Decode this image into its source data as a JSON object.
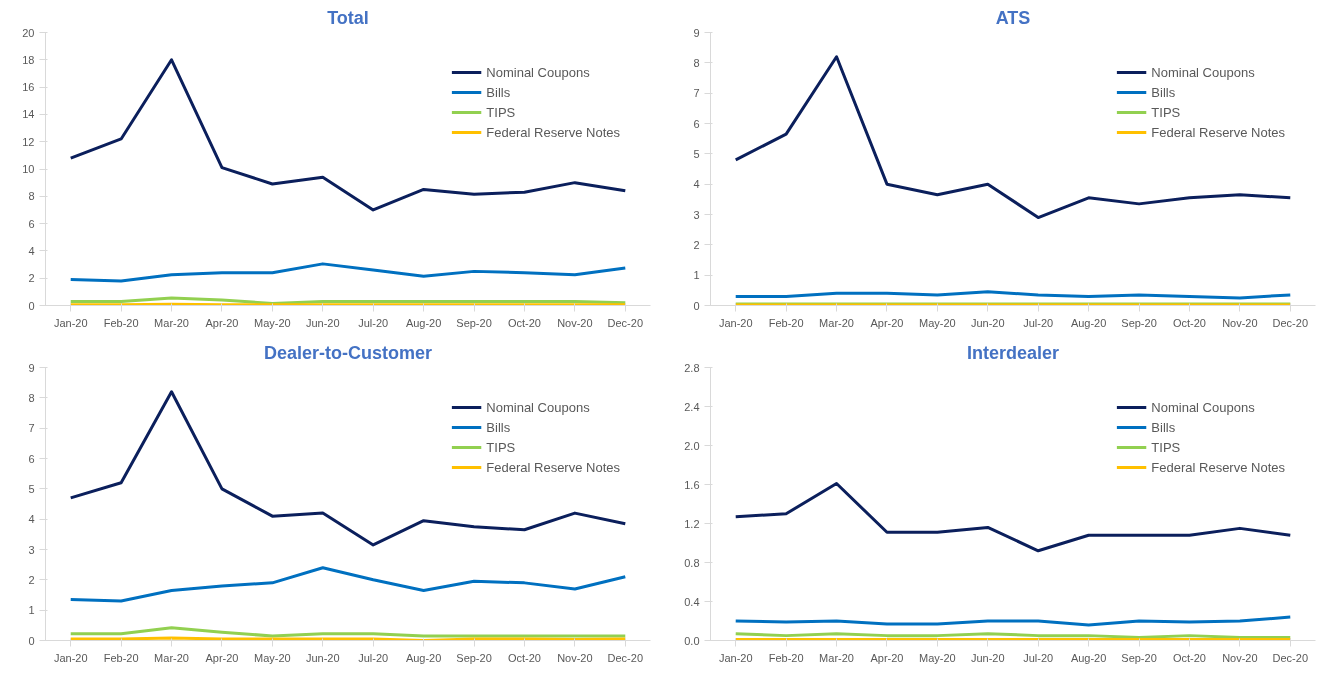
{
  "chart_data": [
    {
      "type": "line",
      "title": "Total",
      "categories": [
        "Jan-20",
        "Feb-20",
        "Mar-20",
        "Apr-20",
        "May-20",
        "Jun-20",
        "Jul-20",
        "Aug-20",
        "Sep-20",
        "Oct-20",
        "Nov-20",
        "Dec-20"
      ],
      "ylim": [
        0,
        20
      ],
      "yticks": [
        0,
        2,
        4,
        6,
        8,
        10,
        12,
        14,
        16,
        18,
        20
      ],
      "grid": false,
      "legend": "top right",
      "series": [
        {
          "name": "Nominal Coupons",
          "color": "#0b1f5c",
          "values": [
            10.8,
            12.2,
            18,
            10.1,
            8.9,
            9.4,
            7,
            8.5,
            8.15,
            8.3,
            9,
            8.4
          ]
        },
        {
          "name": "Bills",
          "color": "#0070c0",
          "values": [
            1.9,
            1.8,
            2.25,
            2.4,
            2.4,
            3.05,
            2.6,
            2.15,
            2.5,
            2.4,
            2.25,
            2.75
          ]
        },
        {
          "name": "TIPS",
          "color": "#92d050",
          "values": [
            0.3,
            0.3,
            0.55,
            0.4,
            0.15,
            0.3,
            0.3,
            0.3,
            0.3,
            0.3,
            0.3,
            0.2
          ]
        },
        {
          "name": "Federal Reserve Notes",
          "color": "#ffc000",
          "values": [
            0.05,
            0.05,
            0.1,
            0.05,
            0.05,
            0.05,
            0.05,
            0.05,
            0.05,
            0.05,
            0.05,
            0.05
          ]
        }
      ]
    },
    {
      "type": "line",
      "title": "ATS",
      "categories": [
        "Jan-20",
        "Feb-20",
        "Mar-20",
        "Apr-20",
        "May-20",
        "Jun-20",
        "Jul-20",
        "Aug-20",
        "Sep-20",
        "Oct-20",
        "Nov-20",
        "Dec-20"
      ],
      "ylim": [
        0,
        9
      ],
      "yticks": [
        0,
        1,
        2,
        3,
        4,
        5,
        6,
        7,
        8,
        9
      ],
      "grid": false,
      "legend": "top right",
      "series": [
        {
          "name": "Nominal Coupons",
          "color": "#0b1f5c",
          "values": [
            4.8,
            5.65,
            8.2,
            4.0,
            3.65,
            4.0,
            2.9,
            3.55,
            3.35,
            3.55,
            3.65,
            3.55
          ]
        },
        {
          "name": "Bills",
          "color": "#0070c0",
          "values": [
            0.3,
            0.3,
            0.4,
            0.4,
            0.35,
            0.45,
            0.35,
            0.3,
            0.35,
            0.3,
            0.25,
            0.35
          ]
        },
        {
          "name": "TIPS",
          "color": "#92d050",
          "values": [
            0.05,
            0.05,
            0.05,
            0.05,
            0.05,
            0.05,
            0.05,
            0.05,
            0.05,
            0.05,
            0.05,
            0.05
          ]
        },
        {
          "name": "Federal Reserve Notes",
          "color": "#ffc000",
          "values": [
            0.02,
            0.02,
            0.02,
            0.02,
            0.02,
            0.02,
            0.02,
            0.02,
            0.02,
            0.02,
            0.02,
            0.02
          ]
        }
      ]
    },
    {
      "type": "line",
      "title": "Dealer-to-Customer",
      "categories": [
        "Jan-20",
        "Feb-20",
        "Mar-20",
        "Apr-20",
        "May-20",
        "Jun-20",
        "Jul-20",
        "Aug-20",
        "Sep-20",
        "Oct-20",
        "Nov-20",
        "Dec-20"
      ],
      "ylim": [
        0,
        9
      ],
      "yticks": [
        0,
        1,
        2,
        3,
        4,
        5,
        6,
        7,
        8,
        9
      ],
      "grid": false,
      "legend": "top right",
      "series": [
        {
          "name": "Nominal Coupons",
          "color": "#0b1f5c",
          "values": [
            4.7,
            5.2,
            8.2,
            5.0,
            4.1,
            4.2,
            3.15,
            3.95,
            3.75,
            3.65,
            4.2,
            3.85
          ]
        },
        {
          "name": "Bills",
          "color": "#0070c0",
          "values": [
            1.35,
            1.3,
            1.65,
            1.8,
            1.9,
            2.4,
            2.0,
            1.65,
            1.95,
            1.9,
            1.7,
            2.1
          ]
        },
        {
          "name": "TIPS",
          "color": "#92d050",
          "values": [
            0.22,
            0.22,
            0.42,
            0.27,
            0.15,
            0.22,
            0.22,
            0.15,
            0.15,
            0.15,
            0.15,
            0.15
          ]
        },
        {
          "name": "Federal Reserve Notes",
          "color": "#ffc000",
          "values": [
            0.05,
            0.05,
            0.08,
            0.05,
            0.05,
            0.05,
            0.05,
            0.0,
            0.05,
            0.05,
            0.03,
            0.05
          ]
        }
      ]
    },
    {
      "type": "line",
      "title": "Interdealer",
      "categories": [
        "Jan-20",
        "Feb-20",
        "Mar-20",
        "Apr-20",
        "May-20",
        "Jun-20",
        "Jul-20",
        "Aug-20",
        "Sep-20",
        "Oct-20",
        "Nov-20",
        "Dec-20"
      ],
      "ylim": [
        0,
        2.8
      ],
      "yticks": [
        {
          "value": 0,
          "label": "0.0"
        },
        0.4,
        0.8,
        1.2,
        1.6,
        {
          "value": 2,
          "label": "2.0"
        },
        2.4,
        2.8
      ],
      "grid": false,
      "legend": "top right",
      "series": [
        {
          "name": "Nominal Coupons",
          "color": "#0b1f5c",
          "values": [
            1.27,
            1.3,
            1.61,
            1.11,
            1.11,
            1.16,
            0.92,
            1.08,
            1.08,
            1.08,
            1.15,
            1.08
          ]
        },
        {
          "name": "Bills",
          "color": "#0070c0",
          "values": [
            0.2,
            0.19,
            0.2,
            0.17,
            0.17,
            0.2,
            0.2,
            0.16,
            0.2,
            0.19,
            0.2,
            0.24
          ]
        },
        {
          "name": "TIPS",
          "color": "#92d050",
          "values": [
            0.07,
            0.05,
            0.07,
            0.05,
            0.05,
            0.07,
            0.05,
            0.05,
            0.03,
            0.05,
            0.03,
            0.03
          ]
        },
        {
          "name": "Federal Reserve Notes",
          "color": "#ffc000",
          "values": [
            0.01,
            0.01,
            0.01,
            0.01,
            0.01,
            0.01,
            0.01,
            0.01,
            0.01,
            0.01,
            0.01,
            0.01
          ]
        }
      ]
    }
  ]
}
